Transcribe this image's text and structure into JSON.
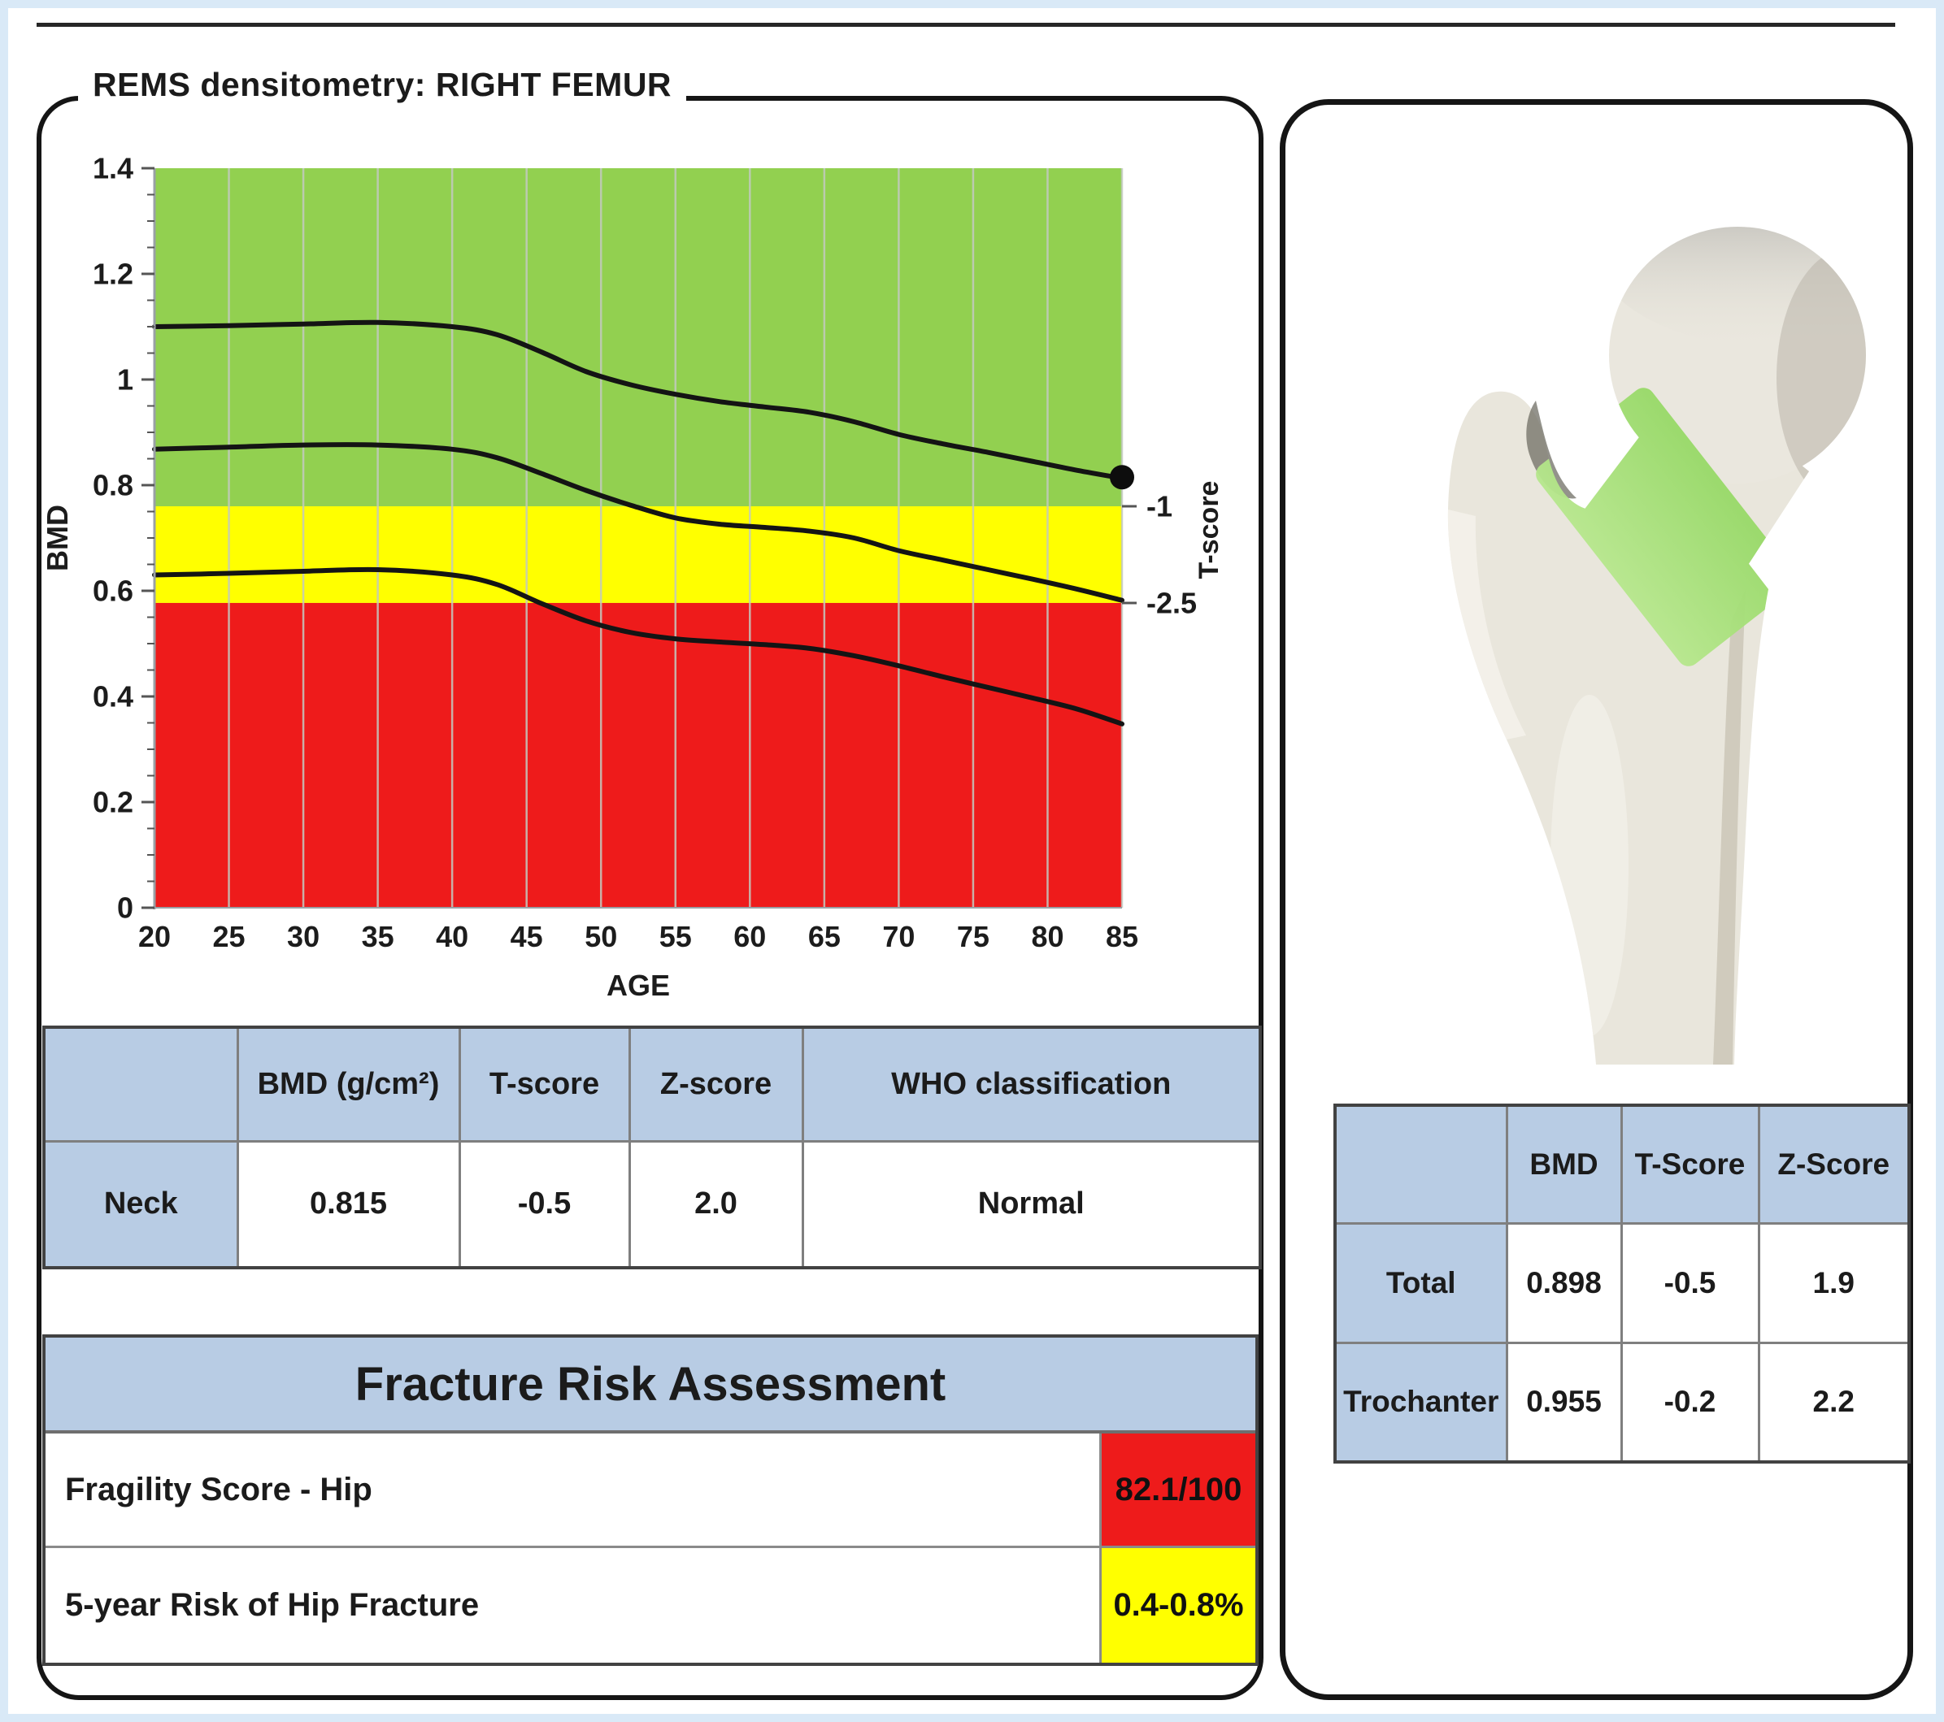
{
  "page": {
    "title": "REMS densitometry: RIGHT FEMUR"
  },
  "chart_data": {
    "type": "line",
    "title": "",
    "xlabel": "AGE",
    "ylabel": "BMD",
    "y2label": "T-score",
    "xlim": [
      20,
      85
    ],
    "ylim": [
      0,
      1.4
    ],
    "x_ticks": [
      20,
      25,
      30,
      35,
      40,
      45,
      50,
      55,
      60,
      65,
      70,
      75,
      80,
      85
    ],
    "y_ticks": [
      0,
      0.2,
      0.4,
      0.6,
      0.8,
      1,
      1.2,
      1.4
    ],
    "y_minor_step": 0.05,
    "grid": "vertical",
    "legend": "none",
    "zones": [
      {
        "color": "#92d050",
        "bmd_from": 0.76,
        "bmd_to": 1.4
      },
      {
        "color": "#ffff00",
        "bmd_from": 0.577,
        "bmd_to": 0.76
      },
      {
        "color": "#ee1b1b",
        "bmd_from": 0,
        "bmd_to": 0.577
      }
    ],
    "t_score_marks": [
      {
        "label": "-1",
        "bmd": 0.76
      },
      {
        "label": "-2.5",
        "bmd": 0.577
      }
    ],
    "x": [
      20,
      25,
      30,
      35,
      40,
      43,
      46,
      49,
      52,
      55,
      58,
      61,
      64,
      67,
      70,
      73,
      76,
      79,
      82,
      85
    ],
    "series": [
      {
        "name": "reference-upper",
        "values": [
          1.1,
          1.102,
          1.105,
          1.108,
          1.1,
          1.085,
          1.052,
          1.015,
          0.99,
          0.972,
          0.958,
          0.948,
          0.938,
          0.92,
          0.896,
          0.878,
          0.862,
          0.845,
          0.828,
          0.813
        ]
      },
      {
        "name": "reference-median",
        "values": [
          0.868,
          0.872,
          0.876,
          0.876,
          0.868,
          0.852,
          0.822,
          0.79,
          0.762,
          0.738,
          0.726,
          0.72,
          0.713,
          0.7,
          0.676,
          0.658,
          0.64,
          0.622,
          0.603,
          0.582
        ]
      },
      {
        "name": "reference-lower",
        "values": [
          0.63,
          0.633,
          0.637,
          0.64,
          0.63,
          0.612,
          0.576,
          0.543,
          0.521,
          0.509,
          0.503,
          0.498,
          0.491,
          0.477,
          0.458,
          0.437,
          0.417,
          0.397,
          0.376,
          0.348
        ]
      }
    ],
    "patient_point": {
      "age": 85,
      "bmd": 0.815
    }
  },
  "neck_table": {
    "headers": [
      "",
      "BMD (g/cm²)",
      "T-score",
      "Z-score",
      "WHO classification"
    ],
    "row_label": "Neck",
    "values": [
      "0.815",
      "-0.5",
      "2.0",
      "Normal"
    ]
  },
  "fracture_risk": {
    "title": "Fracture Risk Assessment",
    "rows": [
      {
        "label": "Fragility Score - Hip",
        "value": "82.1/100",
        "level": "red"
      },
      {
        "label": "5-year Risk of Hip Fracture",
        "value": "0.4-0.8%",
        "level": "yellow"
      }
    ]
  },
  "hip_table": {
    "headers": [
      "",
      "BMD",
      "T-Score",
      "Z-Score"
    ],
    "rows": [
      {
        "label": "Total",
        "values": [
          "0.898",
          "-0.5",
          "1.9"
        ]
      },
      {
        "label": "Trochanter",
        "values": [
          "0.955",
          "-0.2",
          "2.2"
        ]
      }
    ]
  },
  "colors": {
    "red": "#ee1b1b",
    "yellow": "#ffff00",
    "green": "#92d050",
    "header_blue": "#b8cce4",
    "curve": "#141414",
    "grid": "#c3c9c0",
    "axis": "#9aa0a6",
    "femur_roi_green": "#a9e07a"
  }
}
